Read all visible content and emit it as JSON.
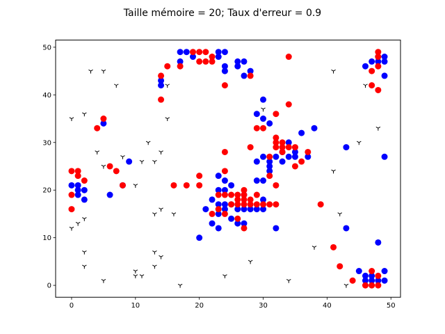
{
  "chart_data": {
    "type": "scatter",
    "title": "Taille mémoire = 20; Taux d'erreur = 0.9",
    "xlabel": "",
    "ylabel": "",
    "xlim": [
      -2.5,
      51.5
    ],
    "ylim": [
      -2.5,
      51.5
    ],
    "xticks": [
      0,
      10,
      20,
      30,
      40,
      50
    ],
    "yticks": [
      0,
      10,
      20,
      30,
      40,
      50
    ],
    "xtick_labels": [
      "0",
      "10",
      "20",
      "30",
      "40",
      "50"
    ],
    "ytick_labels": [
      "0",
      "10",
      "20",
      "30",
      "40",
      "50"
    ],
    "grid": false,
    "series": [
      {
        "marker": "circle",
        "color": "#0000ff",
        "points": [
          [
            0,
            21
          ],
          [
            1,
            21
          ],
          [
            1,
            20
          ],
          [
            2,
            20
          ],
          [
            2,
            18
          ],
          [
            1,
            19
          ],
          [
            5,
            34
          ],
          [
            6,
            19
          ],
          [
            8,
            21
          ],
          [
            9,
            26
          ],
          [
            14,
            43
          ],
          [
            14,
            42
          ],
          [
            17,
            49
          ],
          [
            17,
            47
          ],
          [
            18,
            49
          ],
          [
            19,
            48
          ],
          [
            20,
            10
          ],
          [
            21,
            16
          ],
          [
            22,
            18
          ],
          [
            22,
            13
          ],
          [
            23,
            49
          ],
          [
            23,
            48
          ],
          [
            23,
            23
          ],
          [
            23,
            20
          ],
          [
            23,
            17
          ],
          [
            23,
            15
          ],
          [
            23,
            12
          ],
          [
            24,
            49
          ],
          [
            24,
            46
          ],
          [
            24,
            45
          ],
          [
            24,
            22
          ],
          [
            24,
            20
          ],
          [
            24,
            17
          ],
          [
            24,
            16
          ],
          [
            25,
            21
          ],
          [
            25,
            17
          ],
          [
            25,
            14
          ],
          [
            26,
            47
          ],
          [
            26,
            46
          ],
          [
            26,
            16
          ],
          [
            26,
            13
          ],
          [
            27,
            47
          ],
          [
            27,
            44
          ],
          [
            27,
            19
          ],
          [
            27,
            16
          ],
          [
            27,
            13
          ],
          [
            28,
            45
          ],
          [
            28,
            16
          ],
          [
            29,
            36
          ],
          [
            29,
            22
          ],
          [
            29,
            16
          ],
          [
            29,
            26
          ],
          [
            30,
            39
          ],
          [
            30,
            35
          ],
          [
            30,
            27
          ],
          [
            30,
            22
          ],
          [
            30,
            16
          ],
          [
            30,
            18
          ],
          [
            31,
            34
          ],
          [
            31,
            26
          ],
          [
            31,
            25
          ],
          [
            31,
            24
          ],
          [
            32,
            27
          ],
          [
            32,
            12
          ],
          [
            33,
            26
          ],
          [
            33,
            28
          ],
          [
            34,
            30
          ],
          [
            34,
            27
          ],
          [
            35,
            28
          ],
          [
            35,
            27
          ],
          [
            36,
            32
          ],
          [
            37,
            27
          ],
          [
            38,
            33
          ],
          [
            43,
            29
          ],
          [
            43,
            12
          ],
          [
            45,
            3
          ],
          [
            46,
            46
          ],
          [
            46,
            2
          ],
          [
            46,
            1
          ],
          [
            47,
            47
          ],
          [
            47,
            1
          ],
          [
            47,
            2
          ],
          [
            48,
            48
          ],
          [
            48,
            47
          ],
          [
            48,
            9
          ],
          [
            48,
            1
          ],
          [
            49,
            48
          ],
          [
            49,
            47
          ],
          [
            49,
            44
          ],
          [
            49,
            27
          ],
          [
            49,
            3
          ],
          [
            49,
            1
          ]
        ]
      },
      {
        "marker": "circle",
        "color": "#ff0000",
        "points": [
          [
            0,
            24
          ],
          [
            0,
            19
          ],
          [
            0,
            16
          ],
          [
            1,
            24
          ],
          [
            1,
            23
          ],
          [
            2,
            22
          ],
          [
            4,
            33
          ],
          [
            5,
            35
          ],
          [
            6,
            25
          ],
          [
            7,
            24
          ],
          [
            8,
            21
          ],
          [
            14,
            44
          ],
          [
            14,
            39
          ],
          [
            15,
            46
          ],
          [
            16,
            21
          ],
          [
            17,
            46
          ],
          [
            18,
            21
          ],
          [
            19,
            49
          ],
          [
            20,
            49
          ],
          [
            20,
            47
          ],
          [
            20,
            23
          ],
          [
            20,
            21
          ],
          [
            21,
            49
          ],
          [
            21,
            47
          ],
          [
            22,
            48
          ],
          [
            22,
            47
          ],
          [
            22,
            15
          ],
          [
            23,
            19
          ],
          [
            23,
            16
          ],
          [
            24,
            42
          ],
          [
            24,
            28
          ],
          [
            24,
            24
          ],
          [
            24,
            19
          ],
          [
            24,
            15
          ],
          [
            25,
            19
          ],
          [
            25,
            17
          ],
          [
            26,
            19
          ],
          [
            26,
            18
          ],
          [
            26,
            17
          ],
          [
            26,
            14
          ],
          [
            27,
            18
          ],
          [
            27,
            12
          ],
          [
            27,
            19
          ],
          [
            27,
            20
          ],
          [
            27,
            17
          ],
          [
            28,
            44
          ],
          [
            28,
            29
          ],
          [
            28,
            18
          ],
          [
            28,
            17
          ],
          [
            29,
            33
          ],
          [
            29,
            19
          ],
          [
            29,
            17
          ],
          [
            30,
            33
          ],
          [
            30,
            17
          ],
          [
            31,
            27
          ],
          [
            31,
            23
          ],
          [
            31,
            17
          ],
          [
            32,
            36
          ],
          [
            32,
            31
          ],
          [
            32,
            30
          ],
          [
            32,
            29
          ],
          [
            32,
            21
          ],
          [
            32,
            17
          ],
          [
            33,
            30
          ],
          [
            33,
            29
          ],
          [
            33,
            28
          ],
          [
            34,
            48
          ],
          [
            34,
            38
          ],
          [
            34,
            29
          ],
          [
            35,
            29
          ],
          [
            35,
            25
          ],
          [
            36,
            26
          ],
          [
            37,
            28
          ],
          [
            39,
            17
          ],
          [
            41,
            8
          ],
          [
            42,
            4
          ],
          [
            44,
            1
          ],
          [
            46,
            0
          ],
          [
            47,
            45
          ],
          [
            47,
            42
          ],
          [
            47,
            3
          ],
          [
            47,
            0
          ],
          [
            48,
            49
          ],
          [
            48,
            48
          ],
          [
            48,
            46
          ],
          [
            48,
            41
          ],
          [
            48,
            2
          ],
          [
            48,
            0
          ]
        ]
      },
      {
        "marker": "tri_down",
        "color": "#000000",
        "points": [
          [
            0,
            35
          ],
          [
            0,
            12
          ],
          [
            1,
            13
          ],
          [
            2,
            36
          ],
          [
            2,
            14
          ],
          [
            2,
            7
          ],
          [
            2,
            4
          ],
          [
            3,
            45
          ],
          [
            4,
            28
          ],
          [
            5,
            45
          ],
          [
            5,
            25
          ],
          [
            5,
            1
          ],
          [
            7,
            42
          ],
          [
            8,
            27
          ],
          [
            10,
            21
          ],
          [
            10,
            3
          ],
          [
            10,
            2
          ],
          [
            11,
            26
          ],
          [
            11,
            2
          ],
          [
            12,
            30
          ],
          [
            13,
            26
          ],
          [
            13,
            15
          ],
          [
            13,
            7
          ],
          [
            13,
            4
          ],
          [
            14,
            28
          ],
          [
            14,
            16
          ],
          [
            14,
            6
          ],
          [
            15,
            42
          ],
          [
            15,
            35
          ],
          [
            16,
            15
          ],
          [
            17,
            0
          ],
          [
            24,
            2
          ],
          [
            28,
            5
          ],
          [
            30,
            37
          ],
          [
            34,
            1
          ],
          [
            38,
            8
          ],
          [
            41,
            45
          ],
          [
            41,
            24
          ],
          [
            42,
            15
          ],
          [
            43,
            0
          ],
          [
            45,
            30
          ],
          [
            46,
            42
          ],
          [
            48,
            33
          ]
        ]
      }
    ]
  }
}
